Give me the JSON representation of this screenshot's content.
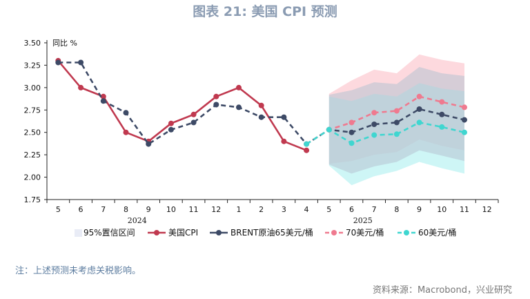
{
  "title": "图表 21: 美国 CPI 预测",
  "note": "注：上述预测未考虑关税影响。",
  "source": "资料来源：Macrobond，兴业研究",
  "colors": {
    "cpi": "#c0394f",
    "brent": "#3d4a66",
    "p70": "#ef7a8f",
    "p60": "#3fd6d0",
    "band70": "#fbb9c2",
    "band60": "#a6eeee",
    "bandBrent": "#b7c3d1",
    "legendBand": "#e9ecf6"
  },
  "chart_data": {
    "type": "line",
    "unit_label": "同比 %",
    "ylim": [
      1.75,
      3.5
    ],
    "yticks": [
      "1.75",
      "2.00",
      "2.25",
      "2.50",
      "2.75",
      "3.00",
      "3.25",
      "3.50"
    ],
    "categories": [
      "5",
      "6",
      "7",
      "8",
      "9",
      "10",
      "11",
      "12",
      "1",
      "2",
      "3",
      "4",
      "5",
      "6",
      "7",
      "8",
      "9",
      "10",
      "11",
      "12"
    ],
    "year_labels": [
      {
        "label": "2024",
        "center_index": 3.5
      },
      {
        "label": "2025",
        "center_index": 13.5
      }
    ],
    "series": [
      {
        "name": "美国CPI",
        "key": "cpi",
        "style": "solid",
        "values": [
          3.3,
          3.0,
          2.9,
          2.5,
          2.4,
          2.6,
          2.7,
          2.9,
          3.0,
          2.8,
          2.4,
          2.3,
          null,
          null,
          null,
          null,
          null,
          null,
          null,
          null
        ]
      },
      {
        "name": "BRENT原油65美元/桶",
        "key": "brent",
        "style": "dashed",
        "values": [
          3.28,
          3.28,
          2.85,
          2.72,
          2.37,
          2.53,
          2.61,
          2.81,
          2.78,
          2.67,
          2.67,
          2.37,
          2.53,
          2.5,
          2.59,
          2.61,
          2.76,
          2.7,
          2.64,
          null
        ]
      },
      {
        "name": "70美元/桶",
        "key": "p70",
        "style": "dashed",
        "values": [
          null,
          null,
          null,
          null,
          null,
          null,
          null,
          null,
          null,
          null,
          null,
          2.37,
          2.53,
          2.61,
          2.72,
          2.74,
          2.9,
          2.84,
          2.78,
          null
        ]
      },
      {
        "name": "60美元/桶",
        "key": "p60",
        "style": "dashed",
        "values": [
          null,
          null,
          null,
          null,
          null,
          null,
          null,
          null,
          null,
          null,
          null,
          2.37,
          2.53,
          2.38,
          2.47,
          2.48,
          2.61,
          2.56,
          2.5,
          null
        ]
      }
    ],
    "bands": [
      {
        "key": "band70",
        "name": "95%置信区间 (70美元/桶)",
        "start_index": 12,
        "upper": [
          2.93,
          3.08,
          3.2,
          3.16,
          3.37,
          3.31,
          3.27
        ],
        "lower": [
          2.15,
          2.18,
          2.25,
          2.28,
          2.42,
          2.35,
          2.3
        ]
      },
      {
        "key": "band60",
        "name": "95%置信区间 (60美元/桶)",
        "start_index": 12,
        "upper": [
          2.9,
          2.85,
          2.93,
          2.9,
          3.05,
          2.99,
          2.96
        ],
        "lower": [
          2.13,
          1.91,
          2.01,
          2.07,
          2.17,
          2.1,
          2.04
        ]
      },
      {
        "key": "bandBrent",
        "name": "95%置信区间 (65美元/桶)",
        "start_index": 12,
        "upper": [
          2.92,
          2.97,
          3.06,
          3.04,
          3.23,
          3.16,
          3.13
        ],
        "lower": [
          2.14,
          2.04,
          2.12,
          2.17,
          2.3,
          2.24,
          2.18
        ]
      }
    ],
    "legend": [
      {
        "label": "95%置信区间",
        "kind": "band",
        "color_key": "legendBand"
      },
      {
        "label": "美国CPI",
        "kind": "line",
        "color_key": "cpi"
      },
      {
        "label": "BRENT原油65美元/桶",
        "kind": "line",
        "color_key": "brent"
      },
      {
        "label": "70美元/桶",
        "kind": "dash",
        "color_key": "p70"
      },
      {
        "label": "60美元/桶",
        "kind": "dash",
        "color_key": "p60"
      }
    ]
  }
}
